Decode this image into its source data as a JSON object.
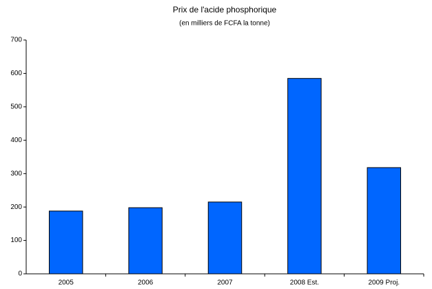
{
  "chart_data": {
    "type": "bar",
    "title": "Prix de l'acide phosphorique",
    "subtitle": "(en milliers de FCFA la tonne)",
    "categories": [
      "2005",
      "2006",
      "2007",
      "2008 Est.",
      "2009 Proj."
    ],
    "values": [
      188,
      198,
      215,
      585,
      318
    ],
    "color": "#0066ff",
    "ylim": [
      0,
      700
    ],
    "yticks": [
      0,
      100,
      200,
      300,
      400,
      500,
      600,
      700
    ],
    "grid": false
  }
}
